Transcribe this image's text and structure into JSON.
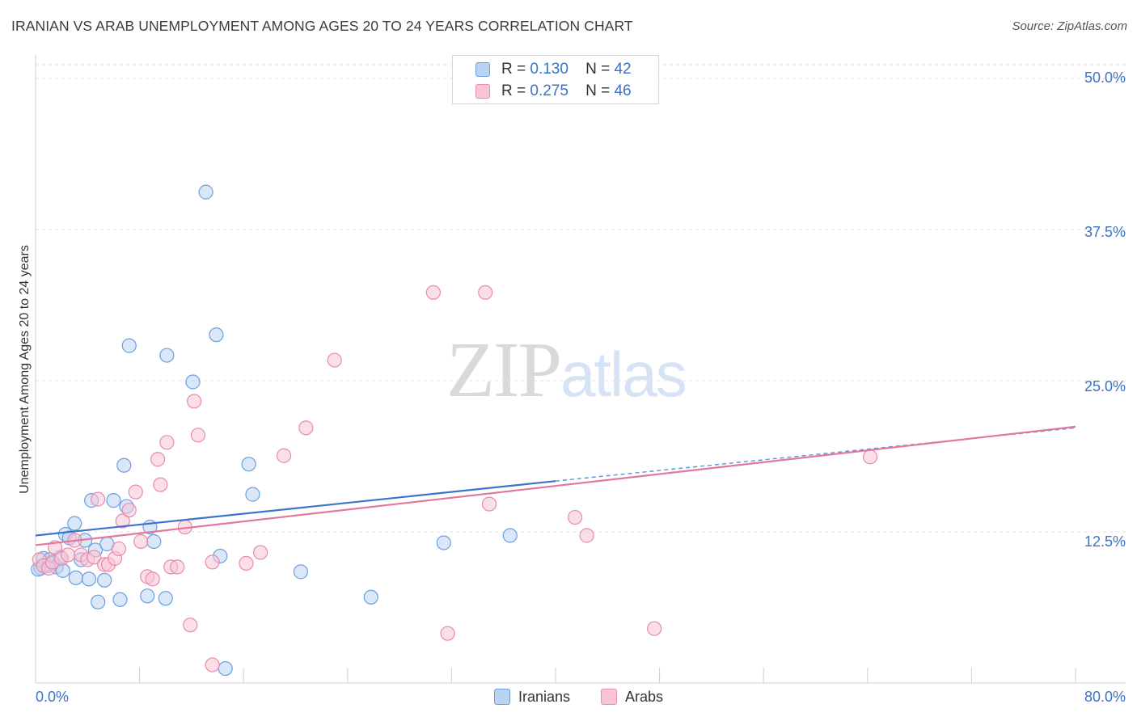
{
  "title": "IRANIAN VS ARAB UNEMPLOYMENT AMONG AGES 20 TO 24 YEARS CORRELATION CHART",
  "source": "Source: ZipAtlas.com",
  "watermark": {
    "zip": "ZIP",
    "atlas": "atlas"
  },
  "legend": {
    "iranians": {
      "r_label": "R =",
      "r_value": "0.130",
      "n_label": "N =",
      "n_value": "42"
    },
    "arabs": {
      "r_label": "R =",
      "r_value": "0.275",
      "n_label": "N =",
      "n_value": "46"
    }
  },
  "colors": {
    "iranians_fill": "#b9d3f3",
    "iranians_stroke": "#6d9fdc",
    "iranians_line": "#3b73cf",
    "arabs_fill": "#f8c4d6",
    "arabs_stroke": "#e98aab",
    "arabs_line": "#e2789e",
    "tick_text": "#3b73c5",
    "grid": "#e2e2e2"
  },
  "chart_data": {
    "type": "scatter",
    "title": "IRANIAN VS ARAB UNEMPLOYMENT AMONG AGES 20 TO 24 YEARS CORRELATION CHART",
    "xlabel": "",
    "ylabel": "Unemployment Among Ages 20 to 24 years",
    "xlim": [
      0,
      80
    ],
    "ylim": [
      0,
      50
    ],
    "x_tick_labels": [
      "0.0%",
      "80.0%"
    ],
    "y_ticks": [
      12.5,
      25.0,
      37.5,
      50.0
    ],
    "y_tick_labels": [
      "12.5%",
      "25.0%",
      "37.5%",
      "50.0%"
    ],
    "grid": true,
    "legend_placement": "top-center",
    "series": [
      {
        "name": "Iranians",
        "points": [
          [
            0.4,
            9.5
          ],
          [
            0.6,
            10.3
          ],
          [
            0.9,
            9.7
          ],
          [
            1.1,
            10.2
          ],
          [
            1.3,
            9.9
          ],
          [
            1.6,
            9.6
          ],
          [
            1.9,
            10.4
          ],
          [
            2.1,
            9.3
          ],
          [
            2.3,
            12.3
          ],
          [
            2.6,
            12.0
          ],
          [
            3.0,
            13.2
          ],
          [
            3.1,
            8.7
          ],
          [
            3.5,
            10.2
          ],
          [
            3.8,
            11.8
          ],
          [
            4.1,
            8.6
          ],
          [
            4.3,
            15.1
          ],
          [
            4.6,
            11.0
          ],
          [
            4.8,
            6.7
          ],
          [
            5.3,
            8.5
          ],
          [
            5.5,
            11.5
          ],
          [
            6.0,
            15.1
          ],
          [
            6.5,
            6.9
          ],
          [
            6.8,
            18.0
          ],
          [
            7.0,
            14.6
          ],
          [
            7.2,
            27.9
          ],
          [
            8.6,
            7.2
          ],
          [
            8.8,
            12.9
          ],
          [
            9.1,
            11.7
          ],
          [
            10.0,
            7.0
          ],
          [
            10.1,
            27.1
          ],
          [
            12.1,
            24.9
          ],
          [
            13.1,
            40.6
          ],
          [
            13.9,
            28.8
          ],
          [
            14.2,
            10.5
          ],
          [
            14.6,
            1.2
          ],
          [
            16.4,
            18.1
          ],
          [
            16.7,
            15.6
          ],
          [
            20.4,
            9.2
          ],
          [
            25.8,
            7.1
          ],
          [
            31.4,
            11.6
          ],
          [
            36.5,
            12.2
          ],
          [
            0.2,
            9.4
          ]
        ],
        "trend": {
          "x": [
            0,
            40
          ],
          "y": [
            12.2,
            16.7
          ],
          "dashed_extension_to": [
            80,
            21.1
          ]
        }
      },
      {
        "name": "Arabs",
        "points": [
          [
            0.3,
            10.2
          ],
          [
            0.6,
            9.7
          ],
          [
            1.0,
            9.5
          ],
          [
            1.3,
            10.0
          ],
          [
            1.5,
            11.2
          ],
          [
            2.0,
            10.3
          ],
          [
            2.5,
            10.6
          ],
          [
            3.0,
            11.8
          ],
          [
            3.5,
            10.6
          ],
          [
            4.0,
            10.2
          ],
          [
            4.5,
            10.4
          ],
          [
            4.8,
            15.2
          ],
          [
            5.3,
            9.8
          ],
          [
            5.6,
            9.8
          ],
          [
            6.1,
            10.3
          ],
          [
            6.4,
            11.1
          ],
          [
            6.7,
            13.4
          ],
          [
            7.2,
            14.3
          ],
          [
            7.7,
            15.8
          ],
          [
            8.1,
            11.7
          ],
          [
            8.6,
            8.8
          ],
          [
            9.0,
            8.6
          ],
          [
            9.4,
            18.5
          ],
          [
            9.6,
            16.4
          ],
          [
            10.1,
            19.9
          ],
          [
            10.4,
            9.6
          ],
          [
            10.9,
            9.6
          ],
          [
            11.5,
            12.9
          ],
          [
            11.9,
            4.8
          ],
          [
            12.2,
            23.3
          ],
          [
            12.5,
            20.5
          ],
          [
            13.6,
            10.0
          ],
          [
            13.6,
            1.5
          ],
          [
            16.2,
            9.9
          ],
          [
            17.3,
            10.8
          ],
          [
            19.1,
            18.8
          ],
          [
            20.8,
            21.1
          ],
          [
            23.0,
            26.7
          ],
          [
            30.6,
            32.3
          ],
          [
            31.7,
            4.1
          ],
          [
            34.6,
            32.3
          ],
          [
            34.9,
            14.8
          ],
          [
            41.5,
            13.7
          ],
          [
            42.4,
            12.2
          ],
          [
            47.6,
            4.5
          ],
          [
            64.2,
            18.7
          ]
        ],
        "trend": {
          "x": [
            0,
            80
          ],
          "y": [
            11.4,
            21.2
          ]
        }
      }
    ]
  },
  "x_label_left": "0.0%",
  "x_label_right": "80.0%",
  "bottom_legend": {
    "iranians": "Iranians",
    "arabs": "Arabs"
  }
}
